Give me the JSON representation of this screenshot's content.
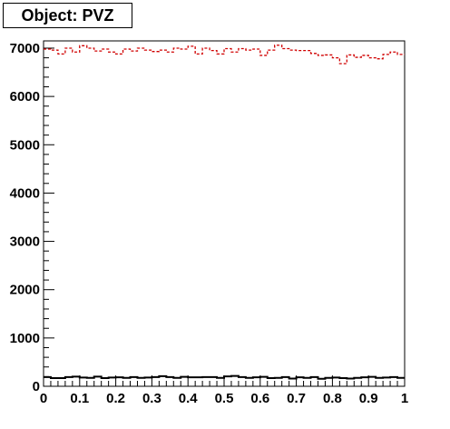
{
  "chart_data": {
    "type": "step",
    "title": "Object: PVZ",
    "xlabel": "",
    "ylabel": "",
    "xlim": [
      0,
      1
    ],
    "ylim": [
      0,
      7150
    ],
    "x_ticks": [
      "0",
      "0.1",
      "0.2",
      "0.3",
      "0.4",
      "0.5",
      "0.6",
      "0.7",
      "0.8",
      "0.9",
      "1"
    ],
    "y_ticks": [
      "0",
      "1000",
      "2000",
      "3000",
      "4000",
      "5000",
      "6000",
      "7000"
    ],
    "bins": 50,
    "series": [
      {
        "color": "#d00000",
        "style": "dashed-step",
        "values": [
          6980,
          6960,
          6880,
          7000,
          6920,
          7050,
          7000,
          6940,
          6980,
          6920,
          6880,
          6980,
          6940,
          7000,
          6960,
          6930,
          6960,
          6920,
          7000,
          6980,
          7040,
          6880,
          7000,
          6950,
          6880,
          6990,
          6920,
          6990,
          6960,
          6980,
          6850,
          6960,
          7060,
          6990,
          6960,
          6950,
          6950,
          6890,
          6850,
          6860,
          6800,
          6680,
          6860,
          6810,
          6850,
          6800,
          6780,
          6870,
          6920,
          6870
        ]
      },
      {
        "color": "#000000",
        "style": "solid-step",
        "values": [
          190,
          170,
          170,
          190,
          200,
          180,
          175,
          200,
          170,
          180,
          185,
          175,
          190,
          175,
          180,
          190,
          210,
          190,
          175,
          195,
          185,
          185,
          190,
          190,
          175,
          205,
          215,
          190,
          175,
          185,
          195,
          170,
          175,
          190,
          160,
          185,
          175,
          190,
          155,
          175,
          180,
          170,
          160,
          175,
          185,
          195,
          175,
          180,
          190,
          175
        ]
      }
    ]
  }
}
